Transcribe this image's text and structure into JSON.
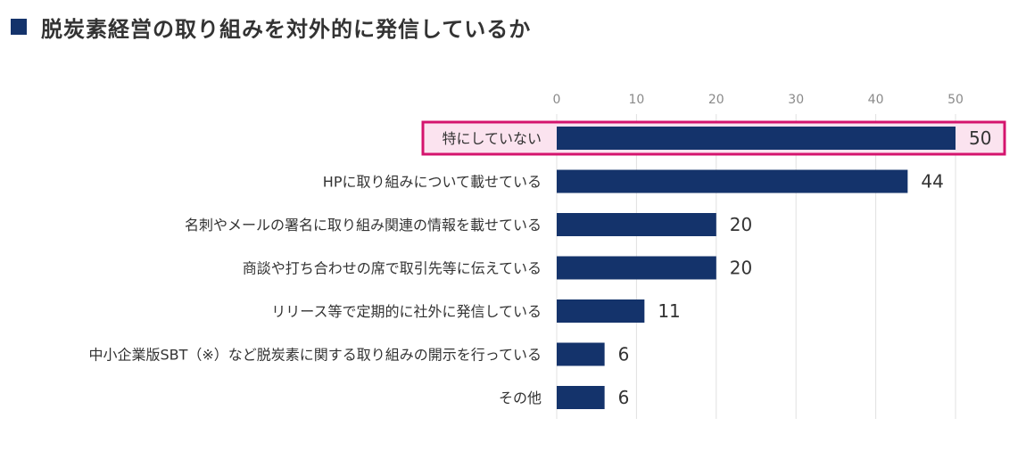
{
  "header": {
    "title": "脱炭素経営の取り組みを対外的に発信しているか"
  },
  "colors": {
    "bar": "#14336b",
    "highlight_border": "#d4146e",
    "highlight_fill": "#fbe3ef",
    "grid": "#e0e0e0",
    "title_square": "#14336b"
  },
  "chart_data": {
    "type": "bar",
    "orientation": "horizontal",
    "title": "脱炭素経営の取り組みを対外的に発信しているか",
    "xlim": [
      0,
      55
    ],
    "xticks": [
      0,
      10,
      20,
      30,
      40,
      50
    ],
    "grid": true,
    "categories": [
      "特にしていない",
      "HPに取り組みについて載せている",
      "名刺やメールの署名に取り組み関連の情報を載せている",
      "商談や打ち合わせの席で取引先等に伝えている",
      "リリース等で定期的に社外に発信している",
      "中小企業版SBT（※）など脱炭素に関する取り組みの開示を行っている",
      "その他"
    ],
    "values": [
      50,
      44,
      20,
      20,
      11,
      6,
      6
    ],
    "highlighted_category": "特にしていない"
  }
}
